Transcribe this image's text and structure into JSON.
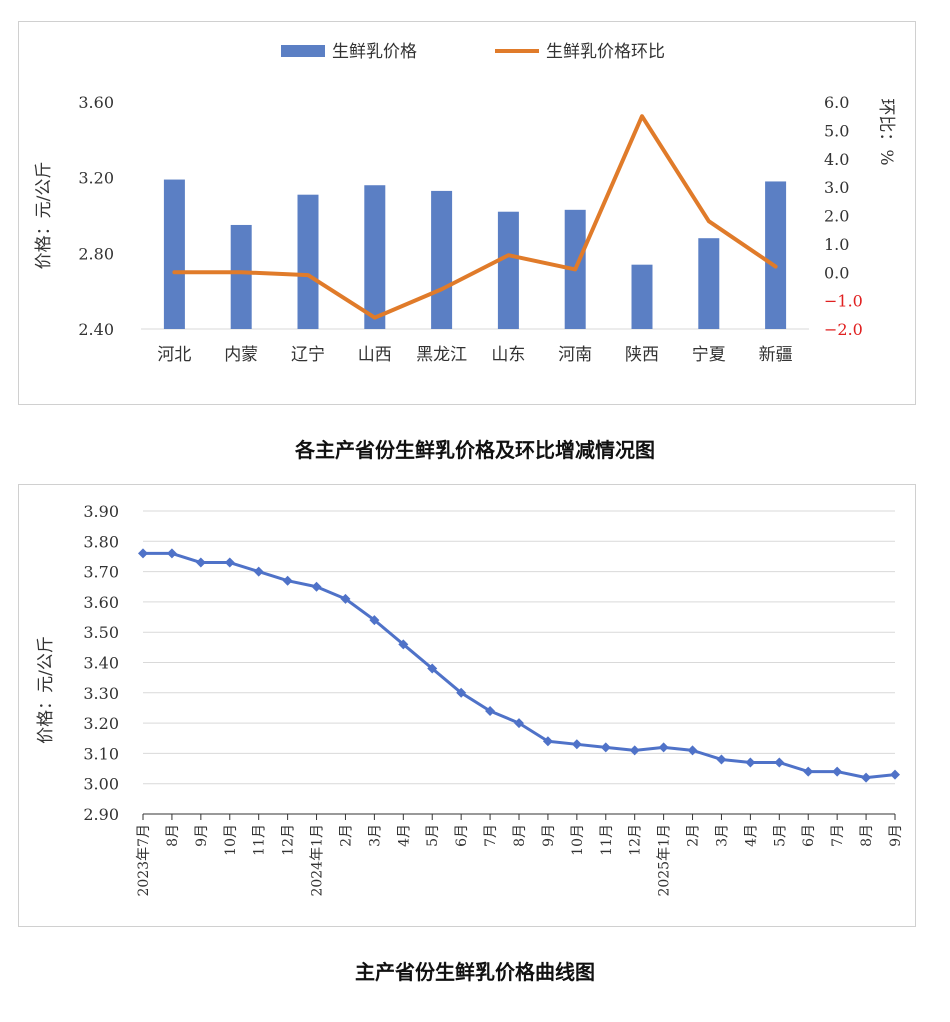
{
  "chart_data": [
    {
      "type": "bar",
      "caption": "各主产省份生鲜乳价格及环比增减情况图",
      "categories": [
        "河北",
        "内蒙",
        "辽宁",
        "山西",
        "黑龙江",
        "山东",
        "河南",
        "陕西",
        "宁夏",
        "新疆"
      ],
      "series": [
        {
          "name": "生鲜乳价格",
          "type": "bar",
          "axis": "left",
          "color": "#5b7fc4",
          "values": [
            3.19,
            2.95,
            3.11,
            3.16,
            3.13,
            3.02,
            3.03,
            2.74,
            2.88,
            3.18
          ]
        },
        {
          "name": "生鲜乳价格环比",
          "type": "line",
          "axis": "right",
          "color": "#e07b2a",
          "values": [
            0.0,
            0.0,
            -0.1,
            -1.6,
            -0.6,
            0.6,
            0.1,
            5.5,
            1.8,
            0.2
          ]
        }
      ],
      "ylabel": "价格：元/公斤",
      "ylim": [
        2.4,
        3.6
      ],
      "yticks": [
        "2.40",
        "2.80",
        "3.20",
        "3.60"
      ],
      "y2label": "环比：%",
      "y2lim": [
        -2.0,
        6.0
      ],
      "y2ticks": [
        "-2.0",
        "-1.0",
        "0.0",
        "1.0",
        "2.0",
        "3.0",
        "4.0",
        "5.0",
        "6.0"
      ],
      "negative_tick_color": "#e02020",
      "legend": "top"
    },
    {
      "type": "line",
      "caption": "主产省份生鲜乳价格曲线图",
      "x": [
        "2023年7月",
        "8月",
        "9月",
        "10月",
        "11月",
        "12月",
        "2024年1月",
        "2月",
        "3月",
        "4月",
        "5月",
        "6月",
        "7月",
        "8月",
        "9月",
        "10月",
        "11月",
        "12月",
        "2025年1月",
        "2月",
        "3月",
        "4月",
        "5月",
        "6月",
        "7月",
        "8月",
        "9月"
      ],
      "series": [
        {
          "color": "#4f72c8",
          "values": [
            3.76,
            3.76,
            3.73,
            3.73,
            3.7,
            3.67,
            3.65,
            3.61,
            3.54,
            3.46,
            3.38,
            3.3,
            3.24,
            3.2,
            3.14,
            3.13,
            3.12,
            3.11,
            3.12,
            3.11,
            3.08,
            3.07,
            3.07,
            3.04,
            3.04,
            3.02,
            3.03
          ]
        }
      ],
      "ylabel": "价格：元/公斤",
      "ylim": [
        2.9,
        3.9
      ],
      "yticks": [
        "2.90",
        "3.00",
        "3.10",
        "3.20",
        "3.30",
        "3.40",
        "3.50",
        "3.60",
        "3.70",
        "3.80",
        "3.90"
      ],
      "grid": true
    }
  ]
}
